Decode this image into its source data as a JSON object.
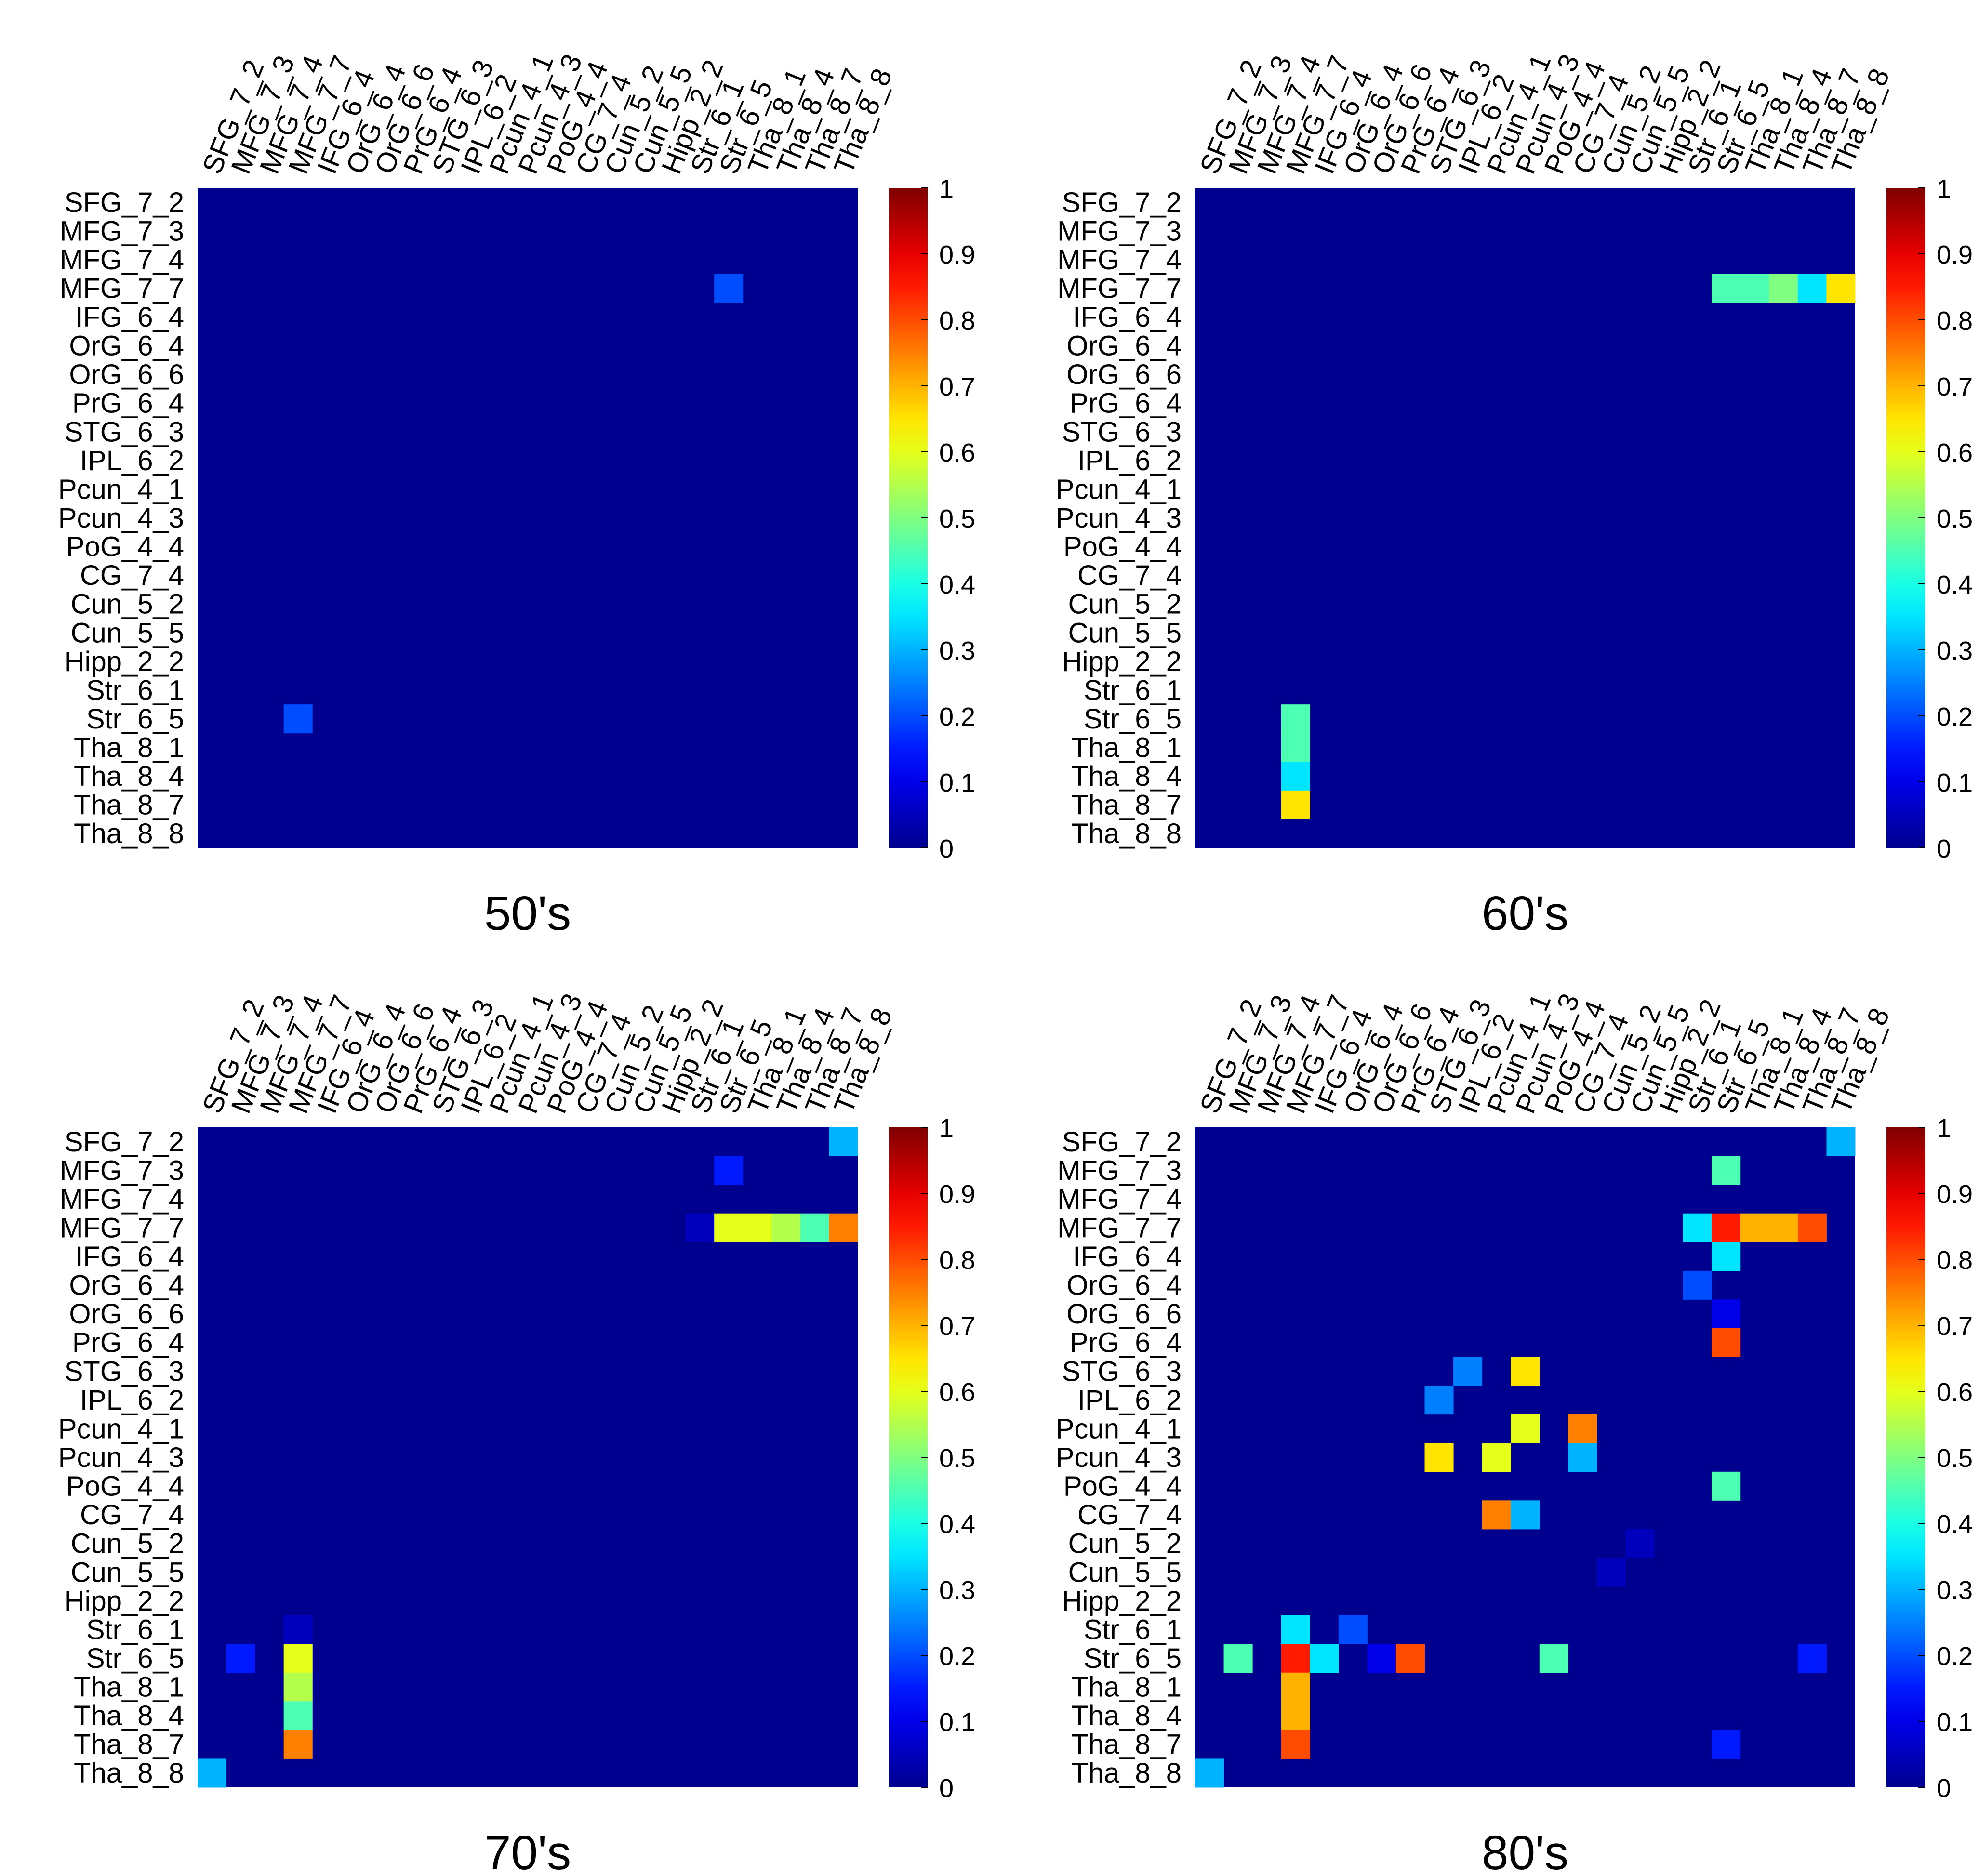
{
  "figure": {
    "colorscale_name": "jet",
    "colorscale": [
      "#00008f",
      "#0000ff",
      "#00ffff",
      "#ffff00",
      "#ff0000",
      "#800000"
    ]
  },
  "chart_data": [
    {
      "type": "heatmap",
      "title": "50's",
      "rows": [
        "SFG_7_2",
        "MFG_7_3",
        "MFG_7_4",
        "MFG_7_7",
        "IFG_6_4",
        "OrG_6_4",
        "OrG_6_6",
        "PrG_6_4",
        "STG_6_3",
        "IPL_6_2",
        "Pcun_4_1",
        "Pcun_4_3",
        "PoG_4_4",
        "CG_7_4",
        "Cun_5_2",
        "Cun_5_5",
        "Hipp_2_2",
        "Str_6_1",
        "Str_6_5",
        "Tha_8_1",
        "Tha_8_4",
        "Tha_8_7",
        "Tha_8_8"
      ],
      "columns": [
        "SFG_7_2",
        "MFG_7_3",
        "MFG_7_4",
        "MFG_7_7",
        "IFG_6_4",
        "OrG_6_4",
        "OrG_6_6",
        "PrG_6_4",
        "STG_6_3",
        "IPL_6_2",
        "Pcun_4_1",
        "Pcun_4_3",
        "PoG_4_4",
        "CG_7_4",
        "Cun_5_2",
        "Cun_5_5",
        "Hipp_2_2",
        "Str_6_1",
        "Str_6_5",
        "Tha_8_1",
        "Tha_8_4",
        "Tha_8_7",
        "Tha_8_8"
      ],
      "cells": [
        {
          "row": 3,
          "col": 18,
          "value": 0.2
        },
        {
          "row": 18,
          "col": 3,
          "value": 0.2
        }
      ],
      "colorbar_ticks": [
        "0",
        "0.1",
        "0.2",
        "0.3",
        "0.4",
        "0.5",
        "0.6",
        "0.7",
        "0.8",
        "0.9",
        "1"
      ],
      "zlim": [
        0,
        1
      ]
    },
    {
      "type": "heatmap",
      "title": "60's",
      "rows": [
        "SFG_7_2",
        "MFG_7_3",
        "MFG_7_4",
        "MFG_7_7",
        "IFG_6_4",
        "OrG_6_4",
        "OrG_6_6",
        "PrG_6_4",
        "STG_6_3",
        "IPL_6_2",
        "Pcun_4_1",
        "Pcun_4_3",
        "PoG_4_4",
        "CG_7_4",
        "Cun_5_2",
        "Cun_5_5",
        "Hipp_2_2",
        "Str_6_1",
        "Str_6_5",
        "Tha_8_1",
        "Tha_8_4",
        "Tha_8_7",
        "Tha_8_8"
      ],
      "columns": [
        "SFG_7_2",
        "MFG_7_3",
        "MFG_7_4",
        "MFG_7_7",
        "IFG_6_4",
        "OrG_6_4",
        "OrG_6_6",
        "PrG_6_4",
        "STG_6_3",
        "IPL_6_2",
        "Pcun_4_1",
        "Pcun_4_3",
        "PoG_4_4",
        "CG_7_4",
        "Cun_5_2",
        "Cun_5_5",
        "Hipp_2_2",
        "Str_6_1",
        "Str_6_5",
        "Tha_8_1",
        "Tha_8_4",
        "Tha_8_7",
        "Tha_8_8"
      ],
      "cells": [
        {
          "row": 3,
          "col": 18,
          "value": 0.45
        },
        {
          "row": 3,
          "col": 19,
          "value": 0.45
        },
        {
          "row": 3,
          "col": 20,
          "value": 0.5
        },
        {
          "row": 3,
          "col": 21,
          "value": 0.35
        },
        {
          "row": 3,
          "col": 22,
          "value": 0.65
        },
        {
          "row": 18,
          "col": 3,
          "value": 0.45
        },
        {
          "row": 19,
          "col": 3,
          "value": 0.45
        },
        {
          "row": 20,
          "col": 3,
          "value": 0.35
        },
        {
          "row": 21,
          "col": 3,
          "value": 0.65
        }
      ],
      "colorbar_ticks": [
        "0",
        "0.1",
        "0.2",
        "0.3",
        "0.4",
        "0.5",
        "0.6",
        "0.7",
        "0.8",
        "0.9",
        "1"
      ],
      "zlim": [
        0,
        1
      ]
    },
    {
      "type": "heatmap",
      "title": "70's",
      "rows": [
        "SFG_7_2",
        "MFG_7_3",
        "MFG_7_4",
        "MFG_7_7",
        "IFG_6_4",
        "OrG_6_4",
        "OrG_6_6",
        "PrG_6_4",
        "STG_6_3",
        "IPL_6_2",
        "Pcun_4_1",
        "Pcun_4_3",
        "PoG_4_4",
        "CG_7_4",
        "Cun_5_2",
        "Cun_5_5",
        "Hipp_2_2",
        "Str_6_1",
        "Str_6_5",
        "Tha_8_1",
        "Tha_8_4",
        "Tha_8_7",
        "Tha_8_8"
      ],
      "columns": [
        "SFG_7_2",
        "MFG_7_3",
        "MFG_7_4",
        "MFG_7_7",
        "IFG_6_4",
        "OrG_6_4",
        "OrG_6_6",
        "PrG_6_4",
        "STG_6_3",
        "IPL_6_2",
        "Pcun_4_1",
        "Pcun_4_3",
        "PoG_4_4",
        "CG_7_4",
        "Cun_5_2",
        "Cun_5_5",
        "Hipp_2_2",
        "Str_6_1",
        "Str_6_5",
        "Tha_8_1",
        "Tha_8_4",
        "Tha_8_7",
        "Tha_8_8"
      ],
      "cells": [
        {
          "row": 0,
          "col": 22,
          "value": 0.3
        },
        {
          "row": 1,
          "col": 18,
          "value": 0.15
        },
        {
          "row": 3,
          "col": 17,
          "value": 0.05
        },
        {
          "row": 3,
          "col": 18,
          "value": 0.6
        },
        {
          "row": 3,
          "col": 19,
          "value": 0.6
        },
        {
          "row": 3,
          "col": 20,
          "value": 0.55
        },
        {
          "row": 3,
          "col": 21,
          "value": 0.45
        },
        {
          "row": 3,
          "col": 22,
          "value": 0.75
        },
        {
          "row": 17,
          "col": 3,
          "value": 0.05
        },
        {
          "row": 18,
          "col": 1,
          "value": 0.15
        },
        {
          "row": 18,
          "col": 3,
          "value": 0.6
        },
        {
          "row": 19,
          "col": 3,
          "value": 0.55
        },
        {
          "row": 20,
          "col": 3,
          "value": 0.45
        },
        {
          "row": 21,
          "col": 3,
          "value": 0.75
        },
        {
          "row": 22,
          "col": 0,
          "value": 0.3
        }
      ],
      "colorbar_ticks": [
        "0",
        "0.1",
        "0.2",
        "0.3",
        "0.4",
        "0.5",
        "0.6",
        "0.7",
        "0.8",
        "0.9",
        "1"
      ],
      "zlim": [
        0,
        1
      ]
    },
    {
      "type": "heatmap",
      "title": "80's",
      "rows": [
        "SFG_7_2",
        "MFG_7_3",
        "MFG_7_4",
        "MFG_7_7",
        "IFG_6_4",
        "OrG_6_4",
        "OrG_6_6",
        "PrG_6_4",
        "STG_6_3",
        "IPL_6_2",
        "Pcun_4_1",
        "Pcun_4_3",
        "PoG_4_4",
        "CG_7_4",
        "Cun_5_2",
        "Cun_5_5",
        "Hipp_2_2",
        "Str_6_1",
        "Str_6_5",
        "Tha_8_1",
        "Tha_8_4",
        "Tha_8_7",
        "Tha_8_8"
      ],
      "columns": [
        "SFG_7_2",
        "MFG_7_3",
        "MFG_7_4",
        "MFG_7_7",
        "IFG_6_4",
        "OrG_6_4",
        "OrG_6_6",
        "PrG_6_4",
        "STG_6_3",
        "IPL_6_2",
        "Pcun_4_1",
        "Pcun_4_3",
        "PoG_4_4",
        "CG_7_4",
        "Cun_5_2",
        "Cun_5_5",
        "Hipp_2_2",
        "Str_6_1",
        "Str_6_5",
        "Tha_8_1",
        "Tha_8_4",
        "Tha_8_7",
        "Tha_8_8"
      ],
      "cells": [
        {
          "row": 0,
          "col": 22,
          "value": 0.3
        },
        {
          "row": 1,
          "col": 18,
          "value": 0.45
        },
        {
          "row": 3,
          "col": 17,
          "value": 0.35
        },
        {
          "row": 3,
          "col": 18,
          "value": 0.85
        },
        {
          "row": 3,
          "col": 19,
          "value": 0.7
        },
        {
          "row": 3,
          "col": 20,
          "value": 0.7
        },
        {
          "row": 3,
          "col": 21,
          "value": 0.8
        },
        {
          "row": 4,
          "col": 18,
          "value": 0.35
        },
        {
          "row": 5,
          "col": 17,
          "value": 0.2
        },
        {
          "row": 6,
          "col": 18,
          "value": 0.1
        },
        {
          "row": 7,
          "col": 18,
          "value": 0.8
        },
        {
          "row": 8,
          "col": 9,
          "value": 0.25
        },
        {
          "row": 8,
          "col": 11,
          "value": 0.65
        },
        {
          "row": 9,
          "col": 8,
          "value": 0.25
        },
        {
          "row": 10,
          "col": 11,
          "value": 0.6
        },
        {
          "row": 10,
          "col": 13,
          "value": 0.75
        },
        {
          "row": 11,
          "col": 8,
          "value": 0.65
        },
        {
          "row": 11,
          "col": 10,
          "value": 0.6
        },
        {
          "row": 11,
          "col": 13,
          "value": 0.3
        },
        {
          "row": 12,
          "col": 18,
          "value": 0.45
        },
        {
          "row": 13,
          "col": 10,
          "value": 0.75
        },
        {
          "row": 13,
          "col": 11,
          "value": 0.3
        },
        {
          "row": 14,
          "col": 15,
          "value": 0.05
        },
        {
          "row": 15,
          "col": 14,
          "value": 0.05
        },
        {
          "row": 17,
          "col": 3,
          "value": 0.35
        },
        {
          "row": 17,
          "col": 5,
          "value": 0.2
        },
        {
          "row": 18,
          "col": 1,
          "value": 0.45
        },
        {
          "row": 18,
          "col": 3,
          "value": 0.85
        },
        {
          "row": 18,
          "col": 4,
          "value": 0.35
        },
        {
          "row": 18,
          "col": 6,
          "value": 0.1
        },
        {
          "row": 18,
          "col": 7,
          "value": 0.8
        },
        {
          "row": 18,
          "col": 12,
          "value": 0.45
        },
        {
          "row": 18,
          "col": 21,
          "value": 0.15
        },
        {
          "row": 19,
          "col": 3,
          "value": 0.7
        },
        {
          "row": 20,
          "col": 3,
          "value": 0.7
        },
        {
          "row": 21,
          "col": 3,
          "value": 0.8
        },
        {
          "row": 21,
          "col": 18,
          "value": 0.15
        },
        {
          "row": 22,
          "col": 0,
          "value": 0.3
        }
      ],
      "colorbar_ticks": [
        "0",
        "0.1",
        "0.2",
        "0.3",
        "0.4",
        "0.5",
        "0.6",
        "0.7",
        "0.8",
        "0.9",
        "1"
      ],
      "zlim": [
        0,
        1
      ]
    }
  ]
}
